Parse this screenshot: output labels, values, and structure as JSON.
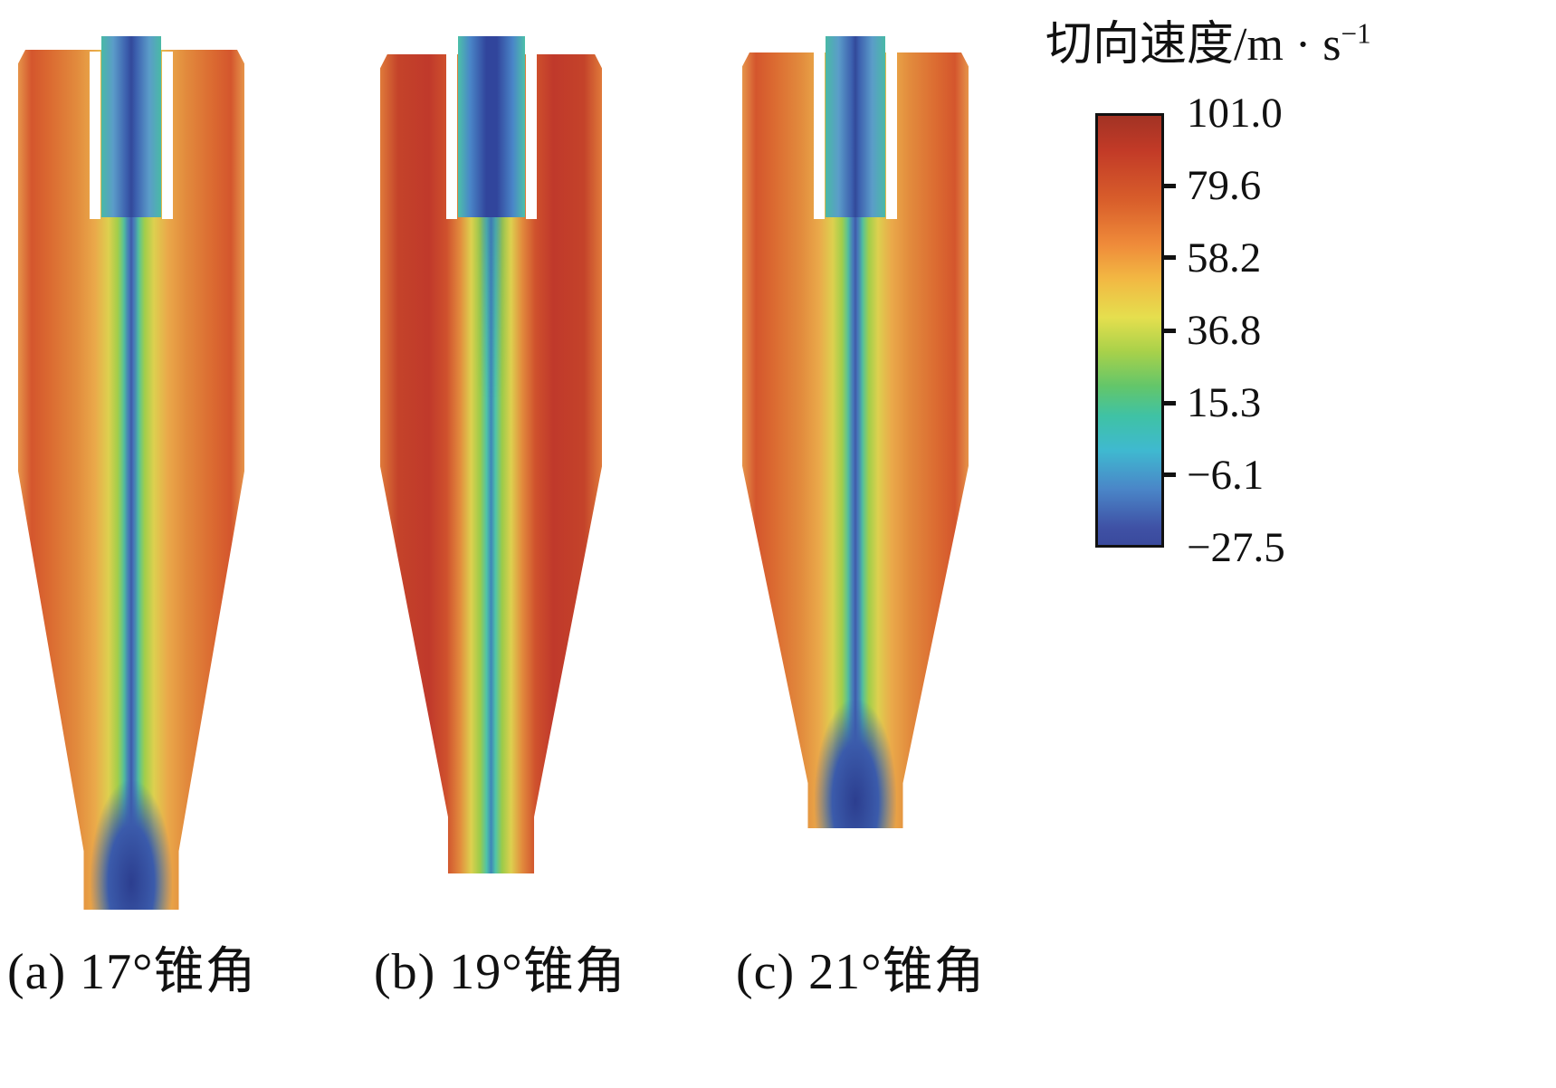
{
  "figure": {
    "panels": [
      {
        "id": "a",
        "caption": "(a) 17°锥角",
        "cone_angle": "17°"
      },
      {
        "id": "b",
        "caption": "(b) 19°锥角",
        "cone_angle": "19°"
      },
      {
        "id": "c",
        "caption": "(c) 21°锥角",
        "cone_angle": "21°"
      }
    ],
    "legend": {
      "title_prefix": "切向速度/m · s",
      "title_exponent": "−1",
      "ticks": [
        "101.0",
        "79.6",
        "58.2",
        "36.8",
        "15.3",
        "−6.1",
        "−27.5"
      ]
    }
  },
  "chart_data": {
    "type": "heatmap",
    "title": "切向速度/m · s⁻¹",
    "quantity": "tangential velocity contours in cyclone separators with different cone angles",
    "unit": "m·s⁻¹",
    "colorbar": {
      "orientation": "vertical",
      "range": [
        -27.5,
        101.0
      ],
      "tick_values": [
        101.0,
        79.6,
        58.2,
        36.8,
        15.3,
        -6.1,
        -27.5
      ],
      "colors_top_to_bottom": [
        "#a23324",
        "#c23a27",
        "#d95f2b",
        "#ef8b3a",
        "#f2b843",
        "#e5df4e",
        "#a8d14a",
        "#63c66a",
        "#3fc2a5",
        "#3fb9d0",
        "#4a86c8",
        "#3f51a5"
      ]
    },
    "panels": [
      {
        "label": "(a) 17°锥角",
        "cone_angle_deg": 17,
        "pattern": "orange/red high tangential velocity near walls, narrow blue low/negative core along axis, dark blue zone at bottom tube"
      },
      {
        "label": "(b) 19°锥角",
        "cone_angle_deg": 19,
        "pattern": "deep red highest velocities along barrel and cone walls, broad green-teal core, blue core inside vortex finder"
      },
      {
        "label": "(c) 21°锥角",
        "cone_angle_deg": 21,
        "pattern": "orange wall region, wavy blue core along axis, blue zone near bottom outlet"
      }
    ]
  }
}
